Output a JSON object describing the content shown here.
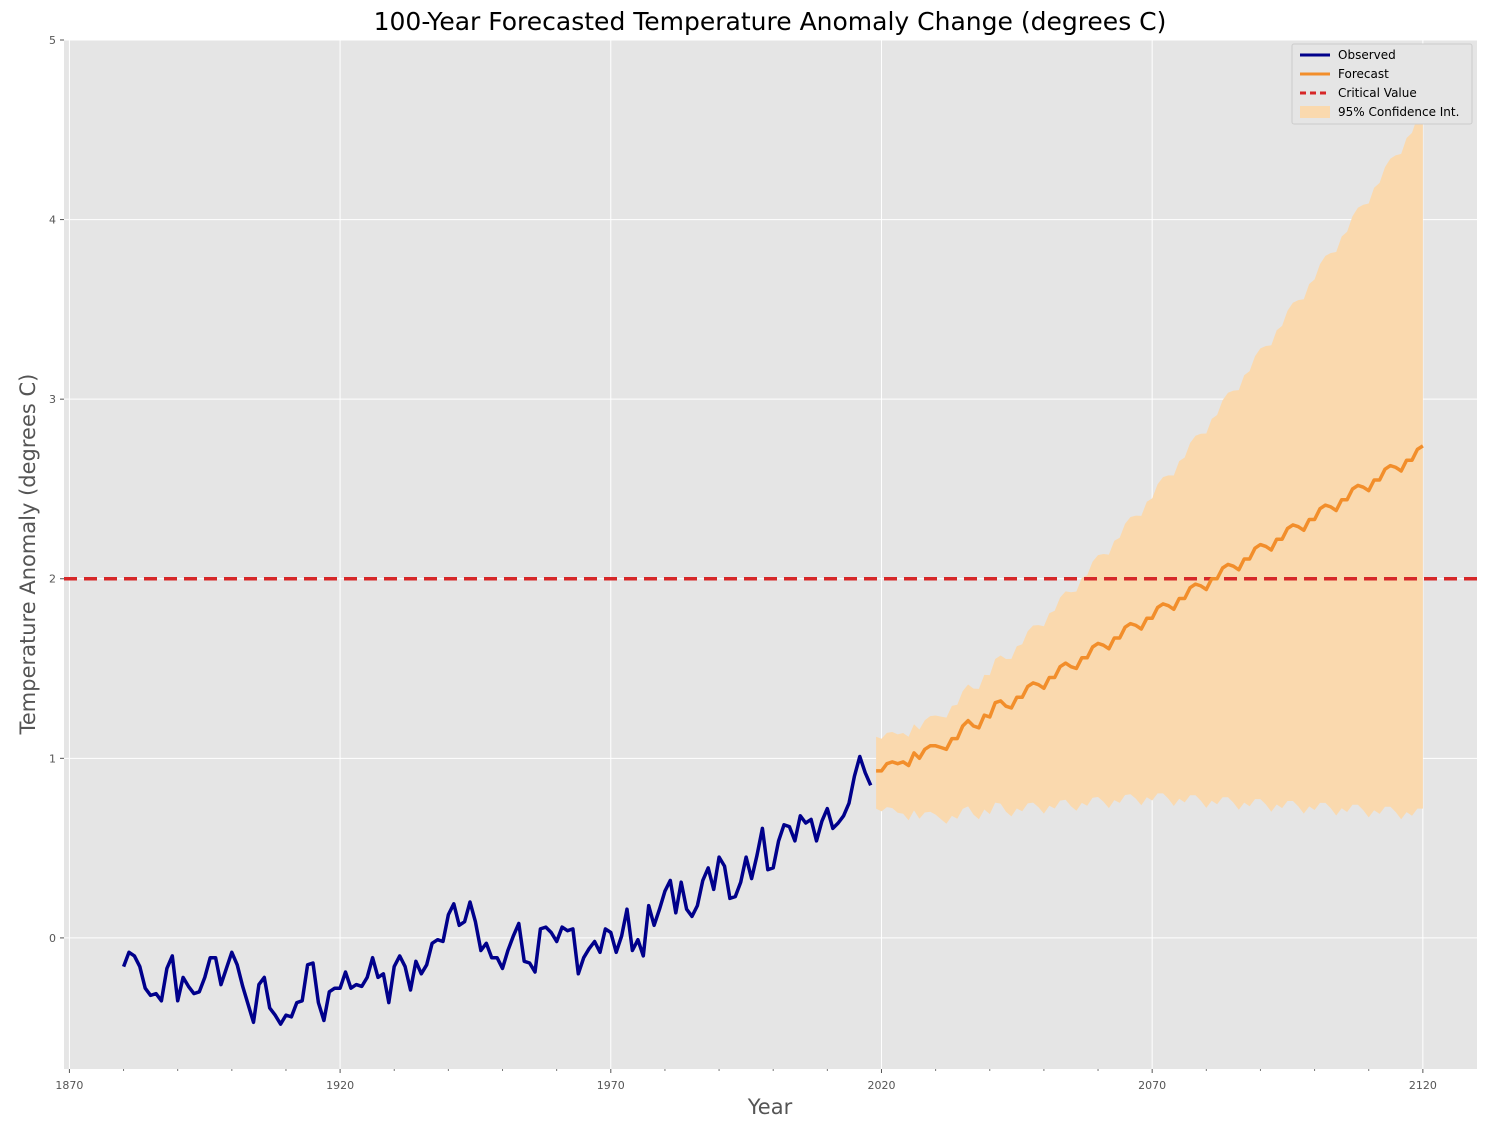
{
  "chart_data": {
    "type": "line",
    "title": "100-Year Forecasted Temperature Anomaly Change (degrees C)",
    "xlabel": "Year",
    "ylabel": "Temperature Anomaly (degrees C)",
    "xlim": [
      1869,
      2130
    ],
    "ylim": [
      -0.73,
      5
    ],
    "x_ticks": [
      1870,
      1920,
      1970,
      2020,
      2070,
      2120
    ],
    "y_ticks": [
      0,
      1,
      2,
      3,
      4,
      5
    ],
    "grid": true,
    "legend_position": "top-right",
    "colors": {
      "background": "#e5e5e5",
      "grid": "#ffffff",
      "observed": "#00008b",
      "forecast": "#f28e2b",
      "critical": "#d62728",
      "confidence": "#fad9ae"
    },
    "legend": [
      {
        "label": "Observed",
        "style": "line",
        "color": "#00008b"
      },
      {
        "label": "Forecast",
        "style": "line",
        "color": "#f28e2b"
      },
      {
        "label": "Critical Value",
        "style": "dashed",
        "color": "#d62728"
      },
      {
        "label": "95% Confidence Int.",
        "style": "area",
        "color": "#fad9ae"
      }
    ],
    "critical_value": 2,
    "series": [
      {
        "name": "Observed",
        "x_start": 1880,
        "x_step": 1,
        "values": [
          -0.16,
          -0.08,
          -0.1,
          -0.16,
          -0.28,
          -0.32,
          -0.31,
          -0.35,
          -0.17,
          -0.1,
          -0.35,
          -0.22,
          -0.27,
          -0.31,
          -0.3,
          -0.22,
          -0.11,
          -0.11,
          -0.26,
          -0.17,
          -0.08,
          -0.15,
          -0.27,
          -0.37,
          -0.47,
          -0.26,
          -0.22,
          -0.39,
          -0.43,
          -0.48,
          -0.43,
          -0.44,
          -0.36,
          -0.35,
          -0.15,
          -0.14,
          -0.36,
          -0.46,
          -0.3,
          -0.28,
          -0.28,
          -0.19,
          -0.28,
          -0.26,
          -0.27,
          -0.22,
          -0.11,
          -0.22,
          -0.2,
          -0.36,
          -0.16,
          -0.1,
          -0.16,
          -0.29,
          -0.13,
          -0.2,
          -0.15,
          -0.03,
          -0.01,
          -0.02,
          0.13,
          0.19,
          0.07,
          0.09,
          0.2,
          0.09,
          -0.07,
          -0.03,
          -0.11,
          -0.11,
          -0.17,
          -0.07,
          0.01,
          0.08,
          -0.13,
          -0.14,
          -0.19,
          0.05,
          0.06,
          0.03,
          -0.02,
          0.06,
          0.04,
          0.05,
          -0.2,
          -0.11,
          -0.06,
          -0.02,
          -0.08,
          0.05,
          0.03,
          -0.08,
          0.01,
          0.16,
          -0.07,
          -0.01,
          -0.1,
          0.18,
          0.07,
          0.16,
          0.26,
          0.32,
          0.14,
          0.31,
          0.16,
          0.12,
          0.18,
          0.32,
          0.39,
          0.27,
          0.45,
          0.4,
          0.22,
          0.23,
          0.31,
          0.45,
          0.33,
          0.46,
          0.61,
          0.38,
          0.39,
          0.54,
          0.63,
          0.62,
          0.54,
          0.68,
          0.64,
          0.66,
          0.54,
          0.65,
          0.72,
          0.61,
          0.64,
          0.68,
          0.75,
          0.9,
          1.01,
          0.92,
          0.85
        ]
      },
      {
        "name": "Forecast",
        "x_start": 2019,
        "x_step": 1,
        "values": [
          0.93,
          0.93,
          0.97,
          0.98,
          0.97,
          0.98,
          0.96,
          1.03,
          1.0,
          1.05,
          1.07,
          1.07,
          1.06,
          1.05,
          1.11,
          1.11,
          1.18,
          1.21,
          1.18,
          1.17,
          1.24,
          1.23,
          1.31,
          1.32,
          1.29,
          1.28,
          1.34,
          1.34,
          1.4,
          1.42,
          1.41,
          1.39,
          1.45,
          1.45,
          1.51,
          1.53,
          1.51,
          1.5,
          1.56,
          1.56,
          1.62,
          1.64,
          1.63,
          1.61,
          1.67,
          1.67,
          1.73,
          1.75,
          1.74,
          1.72,
          1.78,
          1.78,
          1.84,
          1.86,
          1.85,
          1.83,
          1.89,
          1.89,
          1.95,
          1.97,
          1.96,
          1.94,
          2.0,
          2.0,
          2.06,
          2.08,
          2.07,
          2.05,
          2.11,
          2.11,
          2.17,
          2.19,
          2.18,
          2.16,
          2.22,
          2.22,
          2.28,
          2.3,
          2.29,
          2.27,
          2.33,
          2.33,
          2.39,
          2.41,
          2.4,
          2.38,
          2.44,
          2.44,
          2.5,
          2.52,
          2.51,
          2.49,
          2.55,
          2.55,
          2.61,
          2.63,
          2.62,
          2.6,
          2.66,
          2.66,
          2.72,
          2.74
        ]
      }
    ],
    "confidence_interval": {
      "x_start": 2019,
      "x_end": 2118,
      "upper_start": 1.12,
      "upper_end": 4.62,
      "lower_start": 0.72,
      "lower_mid": 0.83,
      "lower_end": 0.72
    }
  }
}
